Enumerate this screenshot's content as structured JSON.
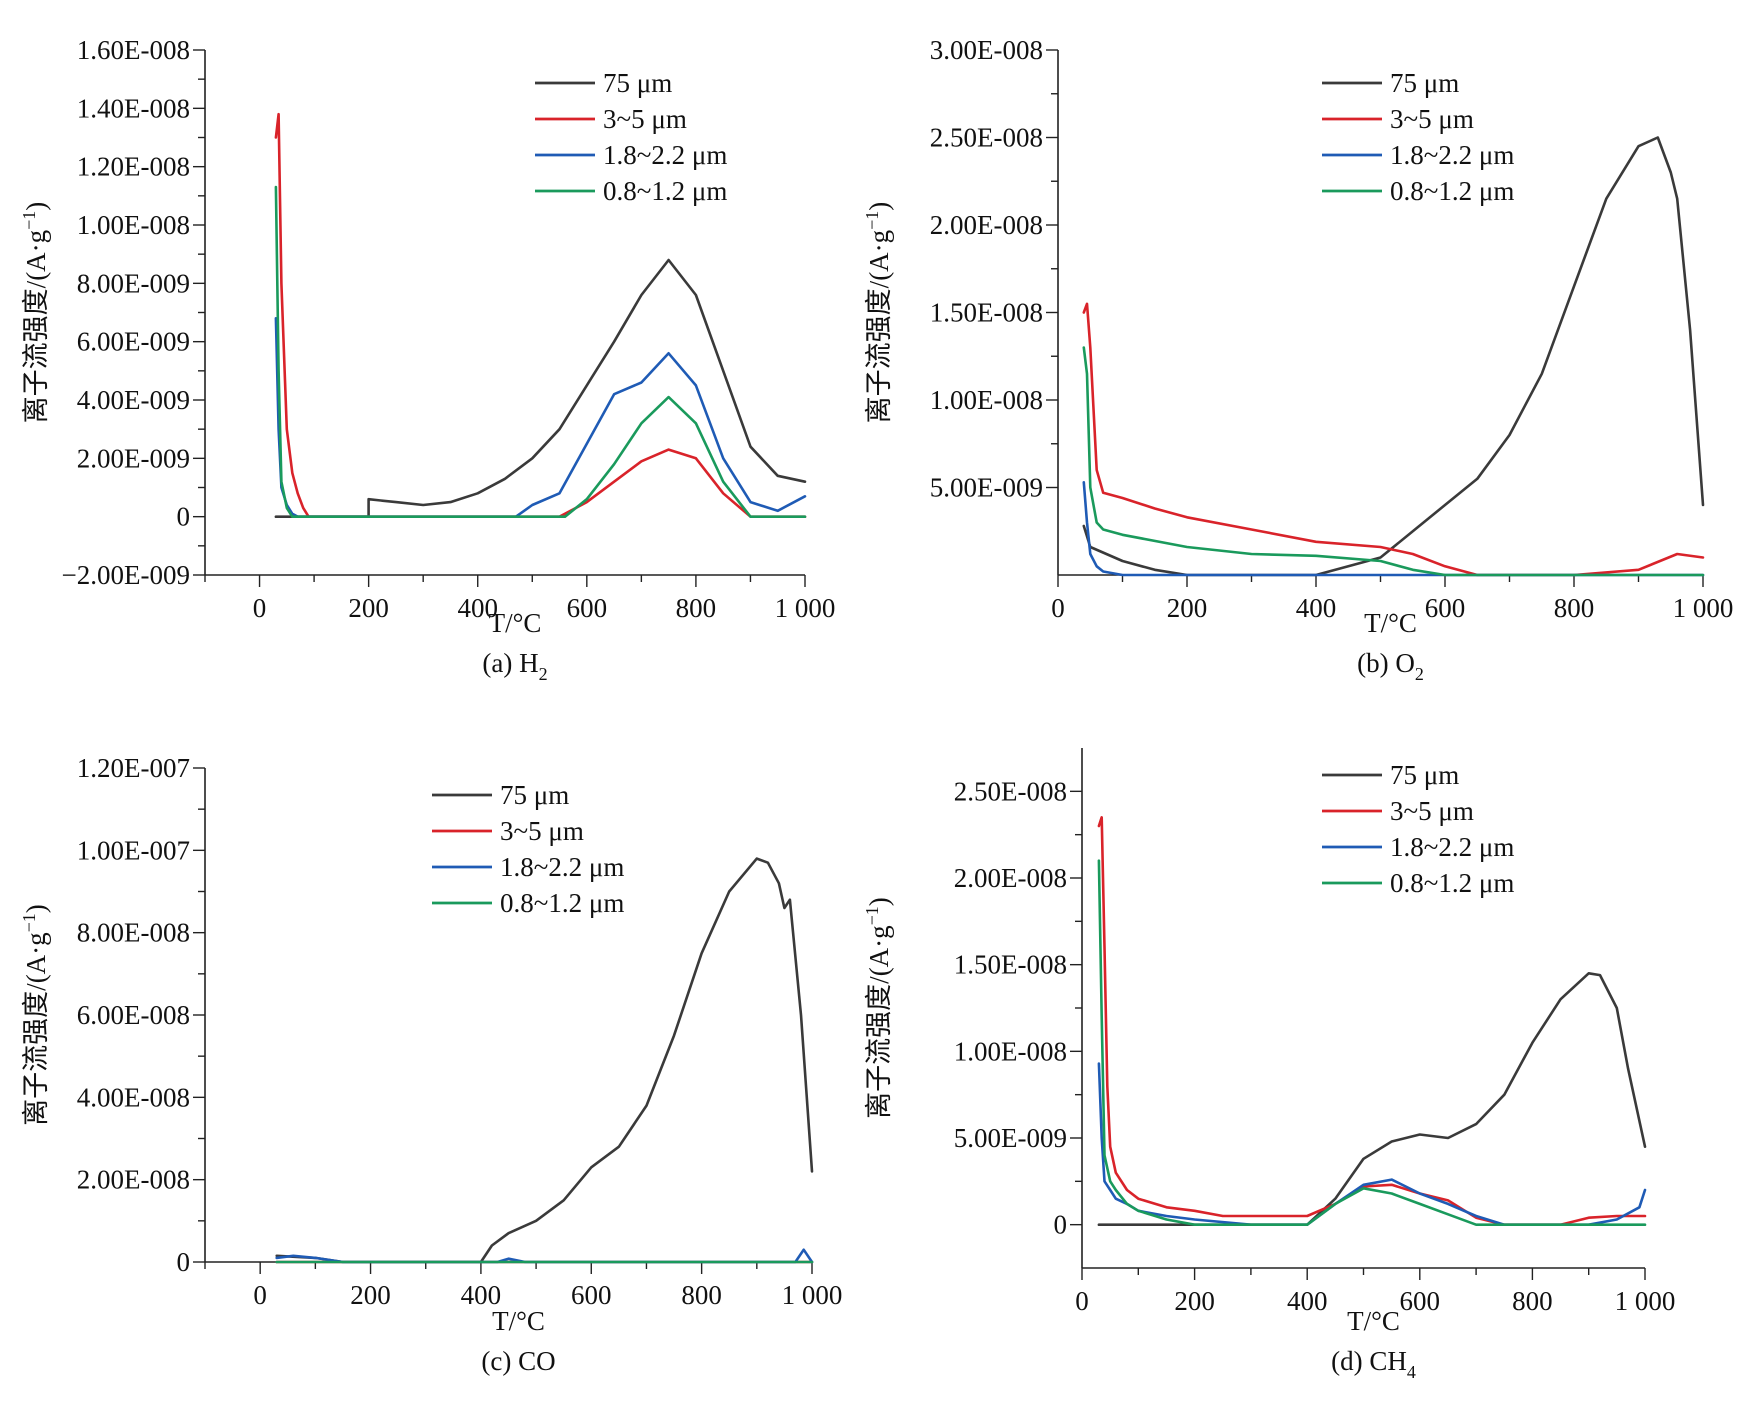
{
  "series_names": [
    "75 μm",
    "3~5 μm",
    "1.8~2.2 μm",
    "0.8~1.2 μm"
  ],
  "colors": {
    "s75": "#3a3a3a",
    "s35": "#d9232a",
    "s18": "#1f5bb5",
    "s08": "#1a9a5c"
  },
  "chart_data": [
    {
      "type": "line",
      "caption": "(a) H",
      "caption_sub": "2",
      "xlabel": "T/°C",
      "ylabel": "离子流强度/(A·g",
      "ylabel_sup": "−1",
      "ylabel_end": ")",
      "xlim": [
        -100,
        1000
      ],
      "ylim": [
        -2e-09,
        1.6e-08
      ],
      "x_ticks": [
        0,
        200,
        400,
        600,
        800,
        1000
      ],
      "x_tick_labels": [
        "0",
        "200",
        "400",
        "600",
        "800",
        "1 000"
      ],
      "y_ticks": [
        -2e-09,
        0,
        2e-09,
        4e-09,
        6e-09,
        8e-09,
        1e-08,
        1.2e-08,
        1.4e-08,
        1.6e-08
      ],
      "y_tick_labels": [
        "−2.00E-009",
        "0",
        "2.00E-009",
        "4.00E-009",
        "6.00E-009",
        "8.00E-009",
        "1.00E-008",
        "1.20E-008",
        "1.40E-008",
        "1.60E-008"
      ],
      "legend": "top-right",
      "series": [
        {
          "name": "75 μm",
          "color": "#3a3a3a",
          "x": [
            30,
            200,
            200,
            250,
            300,
            350,
            400,
            450,
            500,
            550,
            600,
            650,
            700,
            750,
            800,
            850,
            900,
            950,
            1000
          ],
          "y": [
            0,
            0,
            6e-10,
            5e-10,
            4e-10,
            5e-10,
            8e-10,
            1.3e-09,
            2e-09,
            3e-09,
            4.5e-09,
            6e-09,
            7.6e-09,
            8.8e-09,
            7.6e-09,
            5e-09,
            2.4e-09,
            1.4e-09,
            1.2e-09
          ]
        },
        {
          "name": "3~5 μm",
          "color": "#d9232a",
          "x": [
            30,
            35,
            40,
            50,
            60,
            70,
            80,
            90,
            550,
            600,
            650,
            700,
            750,
            800,
            850,
            900,
            1000
          ],
          "y": [
            1.3e-08,
            1.38e-08,
            8e-09,
            3e-09,
            1.5e-09,
            8e-10,
            3e-10,
            0,
            0,
            5e-10,
            1.2e-09,
            1.9e-09,
            2.3e-09,
            2e-09,
            8e-10,
            0,
            0
          ]
        },
        {
          "name": "1.8~2.2 μm",
          "color": "#1f5bb5",
          "x": [
            30,
            35,
            40,
            50,
            60,
            70,
            470,
            500,
            550,
            600,
            650,
            700,
            750,
            800,
            850,
            900,
            950,
            1000
          ],
          "y": [
            6.8e-09,
            3e-09,
            1e-09,
            4e-10,
            1e-10,
            0,
            0,
            4e-10,
            8e-10,
            2.5e-09,
            4.2e-09,
            4.6e-09,
            5.6e-09,
            4.5e-09,
            2e-09,
            5e-10,
            2e-10,
            7e-10
          ]
        },
        {
          "name": "0.8~1.2 μm",
          "color": "#1a9a5c",
          "x": [
            30,
            35,
            40,
            50,
            60,
            560,
            600,
            650,
            700,
            750,
            800,
            850,
            900,
            1000
          ],
          "y": [
            1.13e-08,
            5e-09,
            1.2e-09,
            3e-10,
            0,
            0,
            6e-10,
            1.8e-09,
            3.2e-09,
            4.1e-09,
            3.2e-09,
            1.2e-09,
            0,
            0
          ]
        }
      ]
    },
    {
      "type": "line",
      "caption": "(b) O",
      "caption_sub": "2",
      "xlabel": "T/°C",
      "ylabel": "离子流强度/(A·g",
      "ylabel_sup": "−1",
      "ylabel_end": ")",
      "xlim": [
        0,
        1000
      ],
      "ylim": [
        0,
        3e-08
      ],
      "x_ticks": [
        0,
        200,
        400,
        600,
        800,
        1000
      ],
      "x_tick_labels": [
        "0",
        "200",
        "400",
        "600",
        "800",
        "1 000"
      ],
      "y_ticks": [
        5e-09,
        1e-08,
        1.5e-08,
        2e-08,
        2.5e-08,
        3e-08
      ],
      "y_tick_labels": [
        "5.00E-009",
        "1.00E-008",
        "1.50E-008",
        "2.00E-008",
        "2.50E-008",
        "3.00E-008"
      ],
      "legend": "top-right",
      "series": [
        {
          "name": "75 μm",
          "color": "#3a3a3a",
          "x": [
            40,
            50,
            100,
            150,
            200,
            300,
            400,
            450,
            500,
            550,
            600,
            650,
            700,
            750,
            800,
            850,
            900,
            930,
            950,
            960,
            980,
            1000
          ],
          "y": [
            2.8e-09,
            1.6e-09,
            8e-10,
            3e-10,
            0,
            0,
            0,
            5e-10,
            1e-09,
            2.5e-09,
            4e-09,
            5.5e-09,
            8e-09,
            1.15e-08,
            1.65e-08,
            2.15e-08,
            2.45e-08,
            2.5e-08,
            2.3e-08,
            2.15e-08,
            1.4e-08,
            4e-09
          ]
        },
        {
          "name": "3~5 μm",
          "color": "#d9232a",
          "x": [
            40,
            45,
            50,
            60,
            70,
            100,
            150,
            200,
            300,
            400,
            500,
            550,
            600,
            650,
            700,
            800,
            900,
            960,
            1000
          ],
          "y": [
            1.5e-08,
            1.55e-08,
            1.3e-08,
            6e-09,
            4.7e-09,
            4.4e-09,
            3.8e-09,
            3.3e-09,
            2.6e-09,
            1.9e-09,
            1.6e-09,
            1.2e-09,
            5e-10,
            0,
            0,
            0,
            3e-10,
            1.2e-09,
            1e-09
          ]
        },
        {
          "name": "1.8~2.2 μm",
          "color": "#1f5bb5",
          "x": [
            40,
            45,
            50,
            60,
            70,
            100,
            150,
            1000
          ],
          "y": [
            5.3e-09,
            3e-09,
            1.2e-09,
            5e-10,
            2e-10,
            0,
            0,
            0
          ]
        },
        {
          "name": "0.8~1.2 μm",
          "color": "#1a9a5c",
          "x": [
            40,
            45,
            50,
            60,
            70,
            100,
            200,
            300,
            400,
            500,
            550,
            600,
            650,
            700,
            1000
          ],
          "y": [
            1.3e-08,
            1.15e-08,
            5e-09,
            3e-09,
            2.6e-09,
            2.3e-09,
            1.6e-09,
            1.2e-09,
            1.1e-09,
            8e-10,
            3e-10,
            0,
            0,
            0,
            0
          ]
        }
      ]
    },
    {
      "type": "line",
      "caption": "(c) CO",
      "caption_sub": "",
      "xlabel": "T/°C",
      "ylabel": "离子流强度/(A·g",
      "ylabel_sup": "−1",
      "ylabel_end": ")",
      "xlim": [
        -100,
        1000
      ],
      "ylim": [
        0,
        1.2e-07
      ],
      "x_ticks": [
        0,
        200,
        400,
        600,
        800,
        1000
      ],
      "x_tick_labels": [
        "0",
        "200",
        "400",
        "600",
        "800",
        "1 000"
      ],
      "y_ticks": [
        0,
        2e-08,
        4e-08,
        6e-08,
        8e-08,
        1e-07,
        1.2e-07
      ],
      "y_tick_labels": [
        "0",
        "2.00E-008",
        "4.00E-008",
        "6.00E-008",
        "8.00E-008",
        "1.00E-007",
        "1.20E-007"
      ],
      "legend": "top-right",
      "series": [
        {
          "name": "75 μm",
          "color": "#3a3a3a",
          "x": [
            30,
            100,
            150,
            400,
            420,
            450,
            500,
            550,
            600,
            650,
            700,
            750,
            800,
            850,
            900,
            920,
            940,
            950,
            960,
            980,
            1000
          ],
          "y": [
            1.5e-09,
            1e-09,
            0,
            0,
            4e-09,
            7e-09,
            1e-08,
            1.5e-08,
            2.3e-08,
            2.8e-08,
            3.8e-08,
            5.5e-08,
            7.5e-08,
            9e-08,
            9.8e-08,
            9.7e-08,
            9.2e-08,
            8.6e-08,
            8.8e-08,
            6e-08,
            2.2e-08
          ]
        },
        {
          "name": "3~5 μm",
          "color": "#d9232a",
          "x": [
            30,
            1000
          ],
          "y": [
            0,
            0
          ]
        },
        {
          "name": "1.8~2.2 μm",
          "color": "#1f5bb5",
          "x": [
            30,
            60,
            100,
            150,
            430,
            450,
            480,
            970,
            985,
            1000
          ],
          "y": [
            1e-09,
            1.5e-09,
            1e-09,
            0,
            0,
            8e-10,
            0,
            0,
            3e-09,
            0
          ]
        },
        {
          "name": "0.8~1.2 μm",
          "color": "#1a9a5c",
          "x": [
            30,
            1000
          ],
          "y": [
            0,
            0
          ]
        }
      ]
    },
    {
      "type": "line",
      "caption": "(d) CH",
      "caption_sub": "4",
      "xlabel": "T/°C",
      "ylabel": "离子流强度/(A·g",
      "ylabel_sup": "−1",
      "ylabel_end": ")",
      "xlim": [
        0,
        1000
      ],
      "ylim": [
        -2.5e-09,
        2.75e-08
      ],
      "x_ticks": [
        0,
        200,
        400,
        600,
        800,
        1000
      ],
      "x_tick_labels": [
        "0",
        "200",
        "400",
        "600",
        "800",
        "1 000"
      ],
      "y_ticks": [
        0,
        5e-09,
        1e-08,
        1.5e-08,
        2e-08,
        2.5e-08
      ],
      "y_tick_labels": [
        "0",
        "5.00E-009",
        "1.00E-008",
        "1.50E-008",
        "2.00E-008",
        "2.50E-008"
      ],
      "legend": "top-right",
      "series": [
        {
          "name": "75 μm",
          "color": "#3a3a3a",
          "x": [
            30,
            400,
            450,
            500,
            550,
            600,
            650,
            700,
            750,
            800,
            850,
            900,
            920,
            950,
            970,
            1000
          ],
          "y": [
            0,
            0,
            1.5e-09,
            3.8e-09,
            4.8e-09,
            5.2e-09,
            5e-09,
            5.8e-09,
            7.5e-09,
            1.05e-08,
            1.3e-08,
            1.45e-08,
            1.44e-08,
            1.25e-08,
            9e-09,
            4.5e-09
          ]
        },
        {
          "name": "3~5 μm",
          "color": "#d9232a",
          "x": [
            30,
            35,
            40,
            45,
            50,
            60,
            80,
            100,
            150,
            200,
            250,
            300,
            400,
            450,
            500,
            550,
            600,
            650,
            700,
            750,
            800,
            850,
            900,
            950,
            1000
          ],
          "y": [
            2.3e-08,
            2.35e-08,
            1.6e-08,
            8e-09,
            4.5e-09,
            3e-09,
            2e-09,
            1.5e-09,
            1e-09,
            8e-10,
            5e-10,
            5e-10,
            5e-10,
            1.2e-09,
            2.2e-09,
            2.3e-09,
            1.8e-09,
            1.4e-09,
            4e-10,
            0,
            0,
            0,
            4e-10,
            5e-10,
            5e-10
          ]
        },
        {
          "name": "1.8~2.2 μm",
          "color": "#1f5bb5",
          "x": [
            30,
            35,
            40,
            50,
            60,
            80,
            100,
            150,
            200,
            300,
            400,
            450,
            500,
            550,
            600,
            650,
            700,
            750,
            800,
            900,
            950,
            990,
            1000
          ],
          "y": [
            9.3e-09,
            5e-09,
            2.5e-09,
            2e-09,
            1.5e-09,
            1.2e-09,
            8e-10,
            5e-10,
            3e-10,
            0,
            0,
            1.2e-09,
            2.3e-09,
            2.6e-09,
            1.8e-09,
            1.2e-09,
            5e-10,
            0,
            0,
            0,
            3e-10,
            1e-09,
            2e-09
          ]
        },
        {
          "name": "0.8~1.2 μm",
          "color": "#1a9a5c",
          "x": [
            30,
            35,
            40,
            50,
            60,
            80,
            100,
            150,
            200,
            300,
            400,
            450,
            500,
            550,
            600,
            650,
            700,
            750,
            1000
          ],
          "y": [
            2.1e-08,
            1.2e-08,
            4e-09,
            2.5e-09,
            2e-09,
            1.2e-09,
            8e-10,
            3e-10,
            0,
            0,
            0,
            1.2e-09,
            2.1e-09,
            1.8e-09,
            1.2e-09,
            6e-10,
            0,
            0,
            0
          ]
        }
      ]
    }
  ]
}
